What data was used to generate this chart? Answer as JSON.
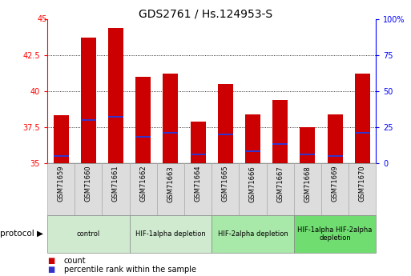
{
  "title": "GDS2761 / Hs.124953-S",
  "samples": [
    "GSM71659",
    "GSM71660",
    "GSM71661",
    "GSM71662",
    "GSM71663",
    "GSM71664",
    "GSM71665",
    "GSM71666",
    "GSM71667",
    "GSM71668",
    "GSM71669",
    "GSM71670"
  ],
  "counts": [
    38.3,
    43.7,
    44.4,
    41.0,
    41.2,
    37.9,
    40.5,
    38.4,
    39.4,
    37.5,
    38.4,
    41.2
  ],
  "percentile_ranks": [
    35.5,
    38.0,
    38.2,
    36.8,
    37.1,
    35.6,
    37.0,
    35.8,
    36.3,
    35.6,
    35.5,
    37.1
  ],
  "y_min": 35,
  "y_max": 45,
  "y_ticks_left": [
    35,
    37.5,
    40,
    42.5,
    45
  ],
  "y_ticks_right": [
    0,
    25,
    50,
    75,
    100
  ],
  "bar_color": "#cc0000",
  "blue_color": "#3333cc",
  "protocol_groups": [
    {
      "label": "control",
      "start": 0,
      "end": 3,
      "color": "#d0ead0"
    },
    {
      "label": "HIF-1alpha depletion",
      "start": 3,
      "end": 6,
      "color": "#d0ead0"
    },
    {
      "label": "HIF-2alpha depletion",
      "start": 6,
      "end": 9,
      "color": "#a8e8a8"
    },
    {
      "label": "HIF-1alpha HIF-2alpha\ndepletion",
      "start": 9,
      "end": 12,
      "color": "#70dd70"
    }
  ],
  "legend_count_label": "count",
  "legend_percentile_label": "percentile rank within the sample",
  "bar_width": 0.55,
  "title_fontsize": 10,
  "tick_fontsize": 7,
  "label_fontsize": 7
}
